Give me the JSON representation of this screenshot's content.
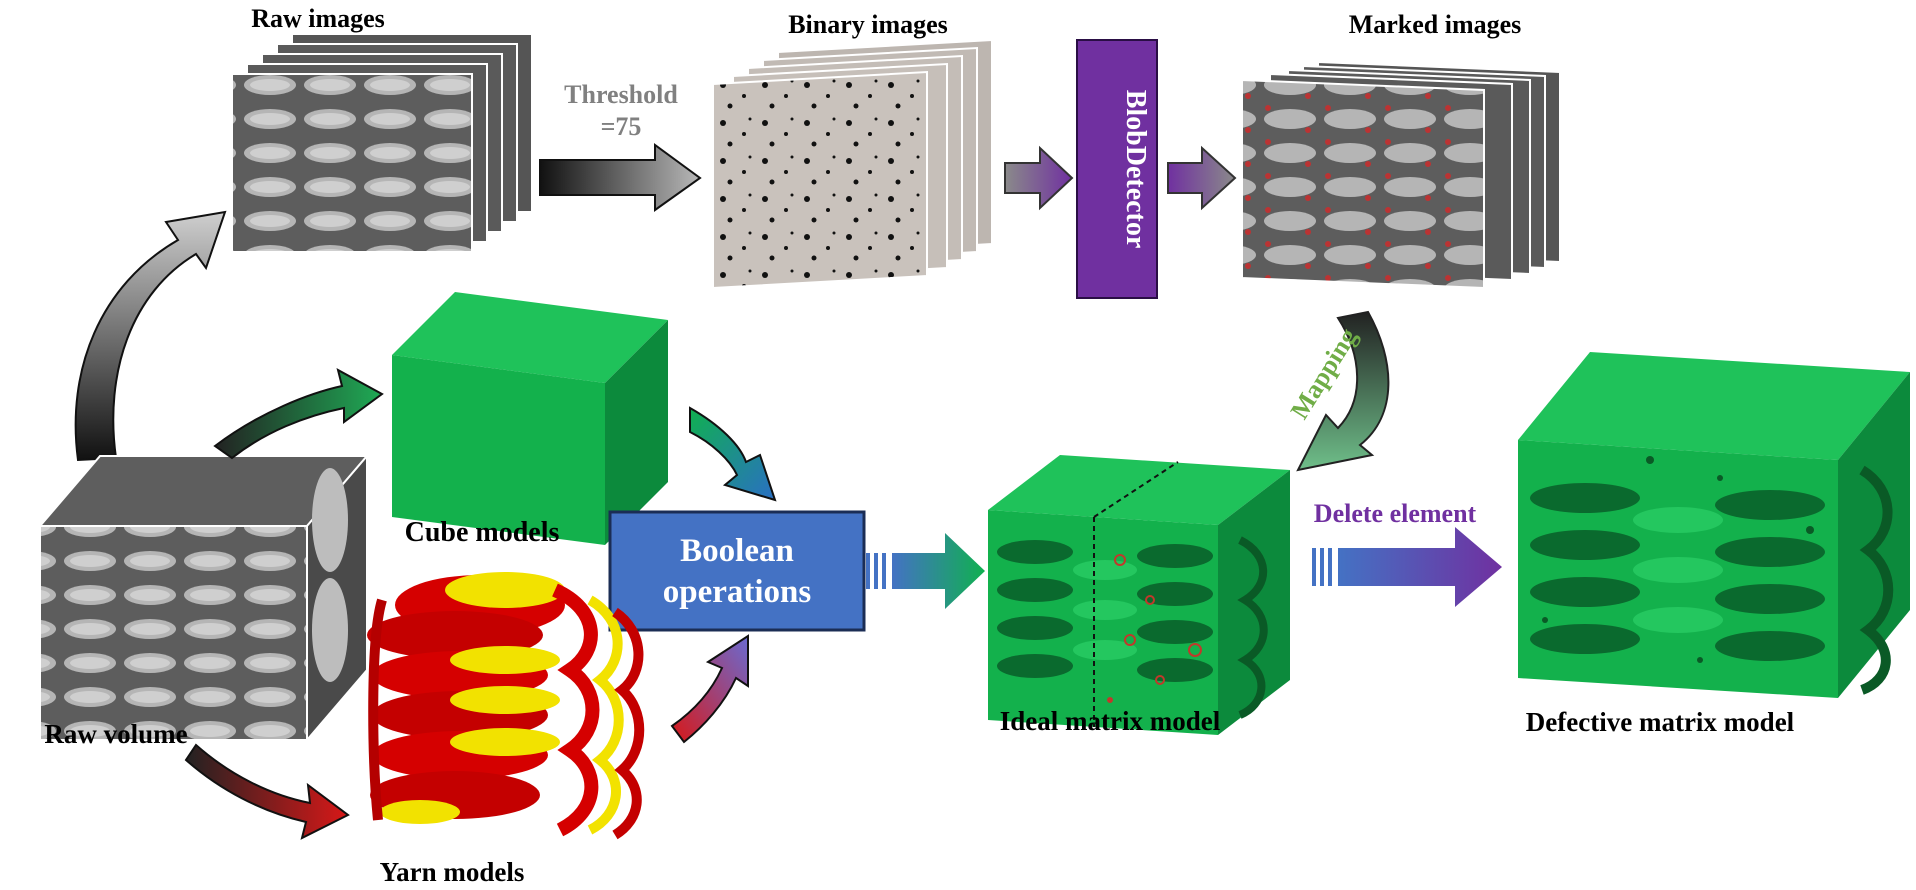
{
  "labels": {
    "raw_images": "Raw  images",
    "binary_images": "Binary images",
    "marked_images": "Marked images",
    "threshold_line1": "Threshold",
    "threshold_line2": "=75",
    "blob_detector": "BlobDetector",
    "mapping": "Mapping",
    "cube_models": "Cube models",
    "boolean_line1": "Boolean",
    "boolean_line2": "operations",
    "ideal_matrix_model": "Ideal matrix model",
    "delete_element": "Delete element",
    "defective_matrix_model": "Defective matrix model",
    "raw_volume": "Raw  volume",
    "yarn_models": "Yarn models"
  },
  "colors": {
    "purple": "#7030a0",
    "boolean_blue": "#4472c4",
    "green_front": "#13b14c",
    "green_top": "#1fc25a",
    "green_side": "#0c8a3c",
    "yarn_red": "#d50000",
    "yarn_yellow": "#f2e200",
    "mapping_green": "#70ad47",
    "threshold_gray": "#808080",
    "binary_bg": "#c9c2bc",
    "raw_gray": "#6e6e6e"
  }
}
